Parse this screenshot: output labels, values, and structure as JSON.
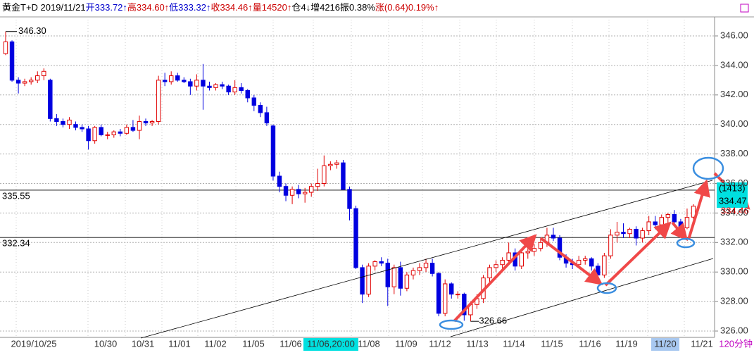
{
  "chart_data": {
    "type": "candlestick",
    "header_segments": [
      {
        "text": "黄金T+D 2019/11/21",
        "color": "#000000"
      },
      {
        "text": "开333.72↑",
        "color": "#0000cc"
      },
      {
        "text": "高334.60↑",
        "color": "#cc0000"
      },
      {
        "text": "低333.32↑",
        "color": "#0000cc"
      },
      {
        "text": "收334.46↑",
        "color": "#cc0000"
      },
      {
        "text": "量14520↑",
        "color": "#cc0000"
      },
      {
        "text": "仓4↓",
        "color": "#000000"
      },
      {
        "text": "增4216",
        "color": "#000000"
      },
      {
        "text": "振0.38%",
        "color": "#000000"
      },
      {
        "text": "涨(0.64)0.19%↑",
        "color": "#cc0000"
      }
    ],
    "ohlc": [
      [
        344.8,
        346.3,
        344.7,
        345.6
      ],
      [
        345.6,
        345.7,
        342.9,
        343.0
      ],
      [
        343.0,
        343.2,
        342.1,
        342.8
      ],
      [
        342.8,
        343.1,
        342.6,
        342.9
      ],
      [
        342.9,
        343.2,
        342.7,
        343.0
      ],
      [
        343.0,
        343.6,
        342.8,
        343.3
      ],
      [
        343.3,
        343.8,
        343.0,
        343.6
      ],
      [
        343.0,
        343.1,
        340.2,
        340.4
      ],
      [
        340.4,
        340.7,
        339.9,
        340.2
      ],
      [
        340.2,
        340.4,
        339.8,
        340.0
      ],
      [
        340.0,
        340.5,
        339.7,
        340.3
      ],
      [
        340.0,
        340.2,
        339.6,
        339.8
      ],
      [
        339.8,
        340.0,
        339.5,
        339.7
      ],
      [
        339.7,
        339.9,
        338.3,
        338.9
      ],
      [
        338.9,
        339.9,
        338.7,
        339.8
      ],
      [
        339.8,
        340.0,
        339.2,
        339.3
      ],
      [
        339.3,
        339.5,
        339.0,
        339.3
      ],
      [
        339.3,
        339.6,
        339.1,
        339.5
      ],
      [
        339.5,
        339.7,
        339.2,
        339.4
      ],
      [
        339.4,
        340.0,
        339.3,
        339.8
      ],
      [
        339.8,
        340.3,
        339.5,
        339.6
      ],
      [
        339.6,
        340.6,
        339.0,
        340.2
      ],
      [
        340.2,
        340.4,
        339.9,
        340.1
      ],
      [
        340.1,
        340.3,
        339.9,
        340.2
      ],
      [
        340.2,
        343.3,
        340.0,
        343.0
      ],
      [
        343.0,
        343.5,
        342.6,
        342.9
      ],
      [
        342.9,
        343.6,
        342.7,
        343.3
      ],
      [
        343.3,
        343.5,
        342.9,
        343.0
      ],
      [
        343.0,
        343.2,
        342.8,
        342.9
      ],
      [
        342.9,
        343.1,
        342.0,
        342.6
      ],
      [
        342.6,
        343.4,
        342.3,
        343.0
      ],
      [
        343.0,
        344.1,
        341.0,
        342.6
      ],
      [
        342.6,
        342.9,
        342.3,
        342.5
      ],
      [
        342.5,
        342.8,
        342.3,
        342.7
      ],
      [
        342.7,
        342.9,
        342.4,
        342.6
      ],
      [
        342.6,
        342.7,
        342.0,
        342.2
      ],
      [
        342.2,
        343.0,
        342.0,
        342.5
      ],
      [
        342.5,
        342.8,
        342.1,
        342.3
      ],
      [
        342.3,
        342.4,
        341.5,
        341.8
      ],
      [
        341.8,
        342.0,
        340.9,
        341.3
      ],
      [
        341.3,
        341.5,
        340.5,
        340.8
      ],
      [
        340.8,
        341.2,
        339.9,
        340.1
      ],
      [
        339.9,
        340.0,
        336.2,
        336.5
      ],
      [
        336.5,
        336.8,
        335.4,
        335.8
      ],
      [
        335.8,
        336.0,
        334.8,
        335.2
      ],
      [
        335.2,
        335.8,
        334.6,
        335.6
      ],
      [
        335.6,
        335.9,
        335.0,
        335.3
      ],
      [
        335.3,
        335.7,
        334.7,
        335.4
      ],
      [
        335.4,
        336.0,
        335.1,
        335.8
      ],
      [
        335.8,
        337.0,
        335.5,
        336.0
      ],
      [
        336.0,
        337.9,
        335.8,
        337.2
      ],
      [
        337.2,
        337.5,
        336.9,
        337.3
      ],
      [
        337.3,
        337.6,
        337.0,
        337.4
      ],
      [
        337.4,
        337.6,
        335.6,
        335.6
      ],
      [
        335.6,
        335.8,
        333.5,
        334.3
      ],
      [
        334.3,
        334.5,
        330.2,
        330.3
      ],
      [
        330.3,
        330.5,
        327.9,
        328.5
      ],
      [
        328.5,
        330.6,
        328.3,
        330.4
      ],
      [
        330.4,
        330.8,
        330.1,
        330.7
      ],
      [
        330.7,
        331.0,
        330.4,
        330.6
      ],
      [
        330.6,
        330.9,
        327.7,
        329.0
      ],
      [
        329.0,
        330.5,
        328.5,
        330.3
      ],
      [
        330.3,
        330.7,
        328.4,
        328.9
      ],
      [
        328.9,
        330.0,
        328.7,
        329.8
      ],
      [
        329.8,
        330.3,
        329.5,
        330.1
      ],
      [
        330.1,
        330.6,
        329.8,
        330.3
      ],
      [
        330.3,
        330.9,
        330.0,
        330.6
      ],
      [
        330.6,
        330.9,
        329.7,
        329.9
      ],
      [
        329.9,
        330.0,
        327.0,
        327.2
      ],
      [
        327.2,
        329.5,
        327.0,
        329.2
      ],
      [
        329.2,
        329.3,
        328.2,
        328.5
      ],
      [
        328.5,
        328.7,
        328.2,
        328.5
      ],
      [
        328.5,
        328.6,
        326.7,
        327.1
      ],
      [
        327.1,
        328.0,
        326.66,
        327.8
      ],
      [
        327.8,
        328.5,
        327.5,
        328.2
      ],
      [
        328.2,
        329.8,
        327.9,
        329.6
      ],
      [
        329.6,
        330.5,
        329.3,
        330.3
      ],
      [
        330.3,
        330.8,
        330.0,
        330.5
      ],
      [
        330.5,
        331.0,
        330.2,
        330.8
      ],
      [
        330.8,
        332.0,
        330.5,
        331.3
      ],
      [
        331.3,
        331.6,
        330.1,
        330.4
      ],
      [
        330.4,
        331.5,
        330.2,
        331.3
      ],
      [
        331.3,
        331.7,
        330.9,
        331.4
      ],
      [
        331.4,
        331.9,
        331.1,
        331.6
      ],
      [
        331.6,
        332.3,
        331.4,
        332.0
      ],
      [
        332.0,
        333.0,
        331.7,
        332.5
      ],
      [
        332.5,
        333.0,
        332.1,
        332.3
      ],
      [
        332.3,
        332.5,
        330.8,
        331.0
      ],
      [
        331.0,
        331.2,
        330.3,
        330.6
      ],
      [
        330.6,
        330.9,
        330.2,
        330.5
      ],
      [
        330.5,
        331.1,
        330.3,
        330.8
      ],
      [
        330.8,
        331.1,
        330.5,
        330.9
      ],
      [
        330.9,
        331.0,
        330.1,
        330.4
      ],
      [
        330.4,
        330.6,
        329.5,
        329.8
      ],
      [
        329.8,
        331.3,
        329.6,
        331.1
      ],
      [
        331.1,
        332.9,
        330.9,
        332.5
      ],
      [
        332.5,
        333.4,
        332.0,
        332.7
      ],
      [
        332.7,
        333.3,
        332.3,
        332.6
      ],
      [
        332.6,
        333.0,
        332.3,
        332.9
      ],
      [
        332.9,
        333.1,
        331.8,
        332.3
      ],
      [
        332.3,
        333.0,
        332.0,
        332.8
      ],
      [
        332.8,
        333.8,
        332.5,
        333.4
      ],
      [
        333.4,
        333.8,
        332.9,
        333.2
      ],
      [
        333.2,
        333.9,
        333.0,
        333.7
      ],
      [
        333.7,
        334.0,
        333.3,
        333.9
      ],
      [
        333.9,
        334.2,
        333.2,
        333.4
      ],
      [
        333.4,
        333.6,
        332.6,
        333.0
      ],
      [
        333.0,
        334.3,
        332.9,
        333.7
      ],
      [
        333.72,
        334.6,
        333.32,
        334.46
      ]
    ],
    "up_color": "#e00000",
    "down_color": "#0000e0",
    "ylim": [
      326,
      346
    ],
    "yticks": [
      {
        "value": 326,
        "label": "326.00"
      },
      {
        "value": 328,
        "label": "328.00"
      },
      {
        "value": 330,
        "label": "330.00"
      },
      {
        "value": 332,
        "label": "332.00"
      },
      {
        "value": 334,
        "label": "334.00"
      },
      {
        "value": 336,
        "label": "336.00"
      },
      {
        "value": 338,
        "label": "338.00"
      },
      {
        "value": 340,
        "label": "340.00"
      },
      {
        "value": 342,
        "label": "342.00"
      },
      {
        "value": 344,
        "label": "344.00"
      },
      {
        "value": 346,
        "label": "346.00"
      }
    ],
    "grid": true,
    "levels": [
      335.55,
      332.34
    ],
    "high_label": {
      "value": 346.3,
      "label": "346.30"
    },
    "low_label": 326.66,
    "cursor_box": [
      "(1413)",
      "334.47"
    ],
    "last_label": "334.46",
    "x_labels": [
      {
        "label": "2019/10/25"
      },
      {
        "label": "10/30"
      },
      {
        "label": "10/31"
      },
      {
        "label": "11/01"
      },
      {
        "label": "11/02"
      },
      {
        "label": "11/05"
      },
      {
        "label": "11/06"
      },
      {
        "label": "11/06,20:00",
        "highlight": true
      },
      {
        "label": "11/08"
      },
      {
        "label": "11/09"
      },
      {
        "label": "11/12"
      },
      {
        "label": "11/13"
      },
      {
        "label": "11/14"
      },
      {
        "label": "11/15"
      },
      {
        "label": "11/16"
      },
      {
        "label": "11/19"
      },
      {
        "label": "11/20",
        "highlight": true
      },
      {
        "label": "11/21"
      }
    ],
    "period": "120分钟"
  }
}
